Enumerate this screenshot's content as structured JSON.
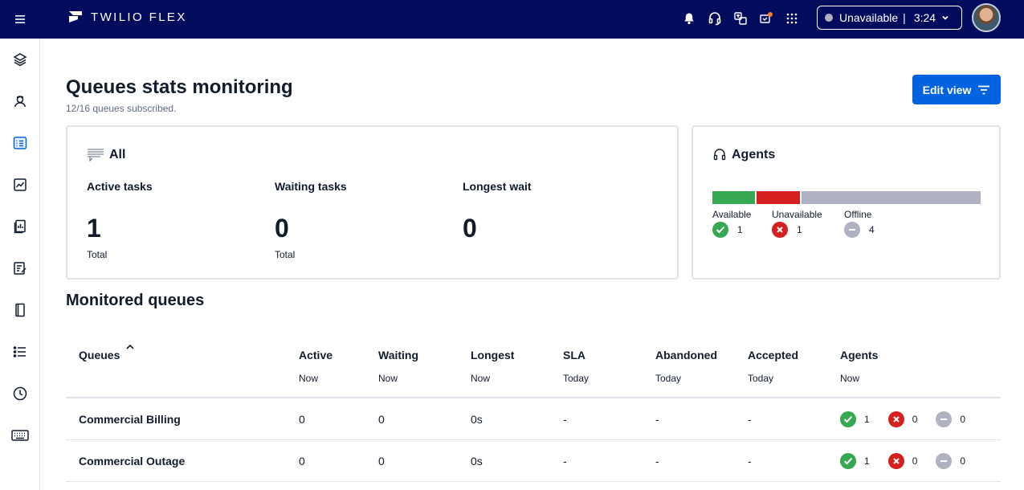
{
  "header": {
    "brand": "TWILIO FLEX",
    "status": "Unavailable",
    "timer": "3:24"
  },
  "page": {
    "title": "Queues stats monitoring",
    "subtitle": "12/16 queues subscribed.",
    "edit_button": "Edit view"
  },
  "all_card": {
    "title": "All",
    "stats": [
      {
        "label": "Active tasks",
        "value": "1",
        "unit": "Total"
      },
      {
        "label": "Waiting tasks",
        "value": "0",
        "unit": "Total"
      },
      {
        "label": "Longest wait",
        "value": "0",
        "unit": ""
      }
    ]
  },
  "agents_card": {
    "title": "Agents",
    "available_label": "Available",
    "available_count": "1",
    "unavailable_label": "Unavailable",
    "unavailable_count": "1",
    "offline_label": "Offline",
    "offline_count": "4",
    "colors": {
      "available": "#36a851",
      "unavailable": "#d61f1f",
      "offline": "#aeb2c1"
    }
  },
  "monitored": {
    "title": "Monitored queues",
    "columns": [
      {
        "label": "Queues",
        "sub": ""
      },
      {
        "label": "Active",
        "sub": "Now"
      },
      {
        "label": "Waiting",
        "sub": "Now"
      },
      {
        "label": "Longest",
        "sub": "Now"
      },
      {
        "label": "SLA",
        "sub": "Today"
      },
      {
        "label": "Abandoned",
        "sub": "Today"
      },
      {
        "label": "Accepted",
        "sub": "Today"
      },
      {
        "label": "Agents",
        "sub": "Now"
      }
    ],
    "rows": [
      {
        "name": "Commercial Billing",
        "active": "0",
        "waiting": "0",
        "longest": "0s",
        "sla": "-",
        "abandoned": "-",
        "accepted": "-",
        "agents_available": "1",
        "agents_unavailable": "0",
        "agents_offline": "0"
      },
      {
        "name": "Commercial Outage",
        "active": "0",
        "waiting": "0",
        "longest": "0s",
        "sla": "-",
        "abandoned": "-",
        "accepted": "-",
        "agents_available": "1",
        "agents_unavailable": "0",
        "agents_offline": "0"
      }
    ]
  },
  "nav_icons": [
    "layers-icon",
    "contacts-icon",
    "queues-stats-icon",
    "insights-icon",
    "reports-icon",
    "tasks-icon",
    "directory-icon",
    "list-icon",
    "history-icon",
    "keyboard-icon"
  ]
}
